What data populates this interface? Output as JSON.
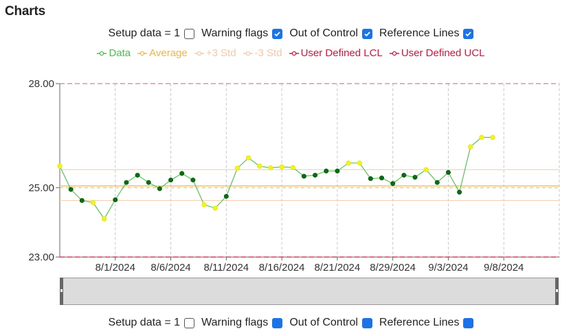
{
  "page": {
    "title": "Charts"
  },
  "controls": {
    "setup": {
      "label": "Setup data = 1",
      "checked": false
    },
    "warning": {
      "label": "Warning flags",
      "checked": true
    },
    "ooc": {
      "label": "Out of Control",
      "checked": true
    },
    "ref": {
      "label": "Reference Lines",
      "checked": true
    }
  },
  "legend": [
    {
      "label": "Data",
      "color": "#43c443"
    },
    {
      "label": "Average",
      "color": "#f0b73c"
    },
    {
      "label": "+3 Std",
      "color": "#f6c7a6"
    },
    {
      "label": "-3 Std",
      "color": "#f6c7a6"
    },
    {
      "label": "User Defined LCL",
      "color": "#d6123f"
    },
    {
      "label": "User Defined UCL",
      "color": "#d6123f"
    }
  ],
  "chart_data": {
    "type": "line",
    "y_ticks": [
      "28.00",
      "25.00",
      "23.00"
    ],
    "ylim": [
      23,
      28
    ],
    "xlim": [
      "2024-07-27",
      "2024-09-10"
    ],
    "x_ticks": [
      "8/1/2024",
      "8/6/2024",
      "8/11/2024",
      "8/16/2024",
      "8/21/2024",
      "8/29/2024",
      "9/3/2024",
      "9/8/2024"
    ],
    "x_tick_dates": [
      "2024-08-01",
      "2024-08-06",
      "2024-08-11",
      "2024-08-16",
      "2024-08-21",
      "2024-08-26",
      "2024-08-31",
      "2024-09-05",
      "2024-09-10"
    ],
    "x_tick_label_dates": [
      "2024-08-01",
      "2024-08-06",
      "2024-08-11",
      "2024-08-16",
      "2024-08-21",
      "2024-08-26",
      "2024-08-31",
      "2024-09-05"
    ],
    "average": 25.05,
    "plus3std": 25.52,
    "minus3std": 24.63,
    "lcl": 23.0,
    "ucl": 28.0,
    "series": [
      {
        "name": "Data",
        "color": "#43c443",
        "points": [
          {
            "x": "2024-07-27",
            "y": 25.62,
            "flag": "warning"
          },
          {
            "x": "2024-07-28",
            "y": 24.95,
            "flag": "normal"
          },
          {
            "x": "2024-07-29",
            "y": 24.63,
            "flag": "normal"
          },
          {
            "x": "2024-07-30",
            "y": 24.57,
            "flag": "warning"
          },
          {
            "x": "2024-07-31",
            "y": 24.1,
            "flag": "warning"
          },
          {
            "x": "2024-08-01",
            "y": 24.65,
            "flag": "normal"
          },
          {
            "x": "2024-08-02",
            "y": 25.15,
            "flag": "normal"
          },
          {
            "x": "2024-08-03",
            "y": 25.36,
            "flag": "normal"
          },
          {
            "x": "2024-08-04",
            "y": 25.15,
            "flag": "normal"
          },
          {
            "x": "2024-08-05",
            "y": 24.97,
            "flag": "normal"
          },
          {
            "x": "2024-08-06",
            "y": 25.22,
            "flag": "normal"
          },
          {
            "x": "2024-08-07",
            "y": 25.41,
            "flag": "normal"
          },
          {
            "x": "2024-08-08",
            "y": 25.22,
            "flag": "normal"
          },
          {
            "x": "2024-08-09",
            "y": 24.51,
            "flag": "warning"
          },
          {
            "x": "2024-08-10",
            "y": 24.41,
            "flag": "warning"
          },
          {
            "x": "2024-08-11",
            "y": 24.75,
            "flag": "normal"
          },
          {
            "x": "2024-08-12",
            "y": 25.56,
            "flag": "warning"
          },
          {
            "x": "2024-08-13",
            "y": 25.86,
            "flag": "warning"
          },
          {
            "x": "2024-08-14",
            "y": 25.62,
            "flag": "warning"
          },
          {
            "x": "2024-08-15",
            "y": 25.57,
            "flag": "warning"
          },
          {
            "x": "2024-08-16",
            "y": 25.6,
            "flag": "warning"
          },
          {
            "x": "2024-08-17",
            "y": 25.58,
            "flag": "warning"
          },
          {
            "x": "2024-08-18",
            "y": 25.33,
            "flag": "normal"
          },
          {
            "x": "2024-08-19",
            "y": 25.36,
            "flag": "normal"
          },
          {
            "x": "2024-08-20",
            "y": 25.48,
            "flag": "normal"
          },
          {
            "x": "2024-08-21",
            "y": 25.48,
            "flag": "normal"
          },
          {
            "x": "2024-08-22",
            "y": 25.71,
            "flag": "warning"
          },
          {
            "x": "2024-08-23",
            "y": 25.71,
            "flag": "warning"
          },
          {
            "x": "2024-08-24",
            "y": 25.26,
            "flag": "normal"
          },
          {
            "x": "2024-08-25",
            "y": 25.28,
            "flag": "normal"
          },
          {
            "x": "2024-08-26",
            "y": 25.12,
            "flag": "normal"
          },
          {
            "x": "2024-08-27",
            "y": 25.36,
            "flag": "normal"
          },
          {
            "x": "2024-08-28",
            "y": 25.3,
            "flag": "normal"
          },
          {
            "x": "2024-08-29",
            "y": 25.52,
            "flag": "warning"
          },
          {
            "x": "2024-08-30",
            "y": 25.15,
            "flag": "normal"
          },
          {
            "x": "2024-08-31",
            "y": 25.44,
            "flag": "normal"
          },
          {
            "x": "2024-09-01",
            "y": 24.87,
            "flag": "normal"
          },
          {
            "x": "2024-09-02",
            "y": 26.18,
            "flag": "warning"
          },
          {
            "x": "2024-09-03",
            "y": 26.45,
            "flag": "warning"
          },
          {
            "x": "2024-09-04",
            "y": 26.45,
            "flag": "warning"
          }
        ]
      }
    ]
  },
  "footer_controls": {
    "setup": "Setup data = 1",
    "warning": "Warning flags",
    "ooc": "Out of Control",
    "ref": "Reference Lines"
  }
}
